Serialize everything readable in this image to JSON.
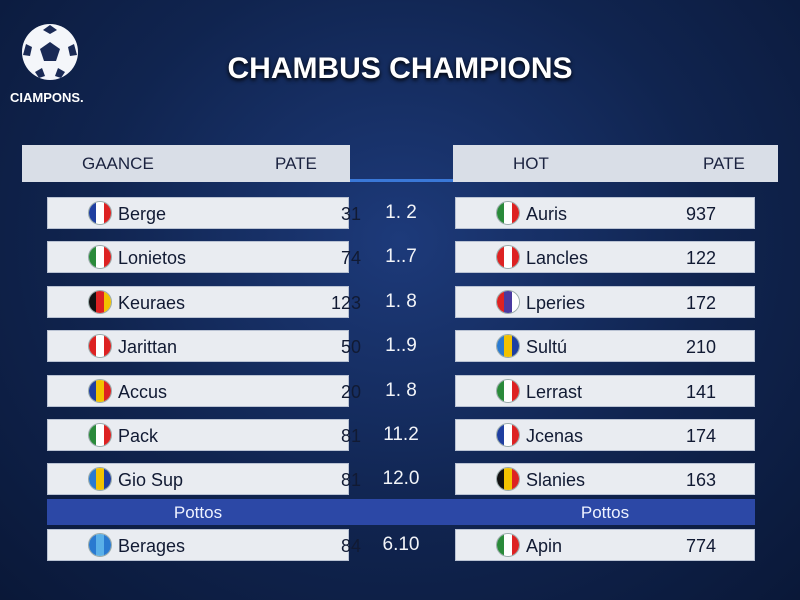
{
  "logo": {
    "text": "CIAMPONS."
  },
  "header": {
    "title": "CHAMBUS CHAMPIONS"
  },
  "left_table": {
    "columns": [
      "GAANCE",
      "PATE"
    ],
    "rows": [
      [
        "Berge",
        "31"
      ],
      [
        "Lonietos",
        "74"
      ],
      [
        "Keuraes",
        "123"
      ],
      [
        "Jarittan",
        "50"
      ],
      [
        "Accus",
        "20"
      ],
      [
        "Pack",
        "81"
      ],
      [
        "Gio Sup",
        "81"
      ]
    ],
    "section": "Pottos",
    "section_rows": [
      [
        "Berages",
        "84"
      ]
    ]
  },
  "middle": {
    "values": [
      "1. 2",
      "1..7",
      "1. 8",
      "1..9",
      "1. 8",
      "11.2",
      "12.0"
    ],
    "section_values": [
      "6.10"
    ]
  },
  "right_table": {
    "columns": [
      "HOT",
      "PATE"
    ],
    "rows": [
      [
        "Auris",
        "937"
      ],
      [
        "Lancles",
        "122"
      ],
      [
        "Lperies",
        "172"
      ],
      [
        "Sultú",
        "210"
      ],
      [
        "Lerrast",
        "141"
      ],
      [
        "Jcenas",
        "174"
      ],
      [
        "Slanies",
        "163"
      ]
    ],
    "section": "Pottos",
    "section_rows": [
      [
        "Apin",
        "774"
      ]
    ]
  }
}
